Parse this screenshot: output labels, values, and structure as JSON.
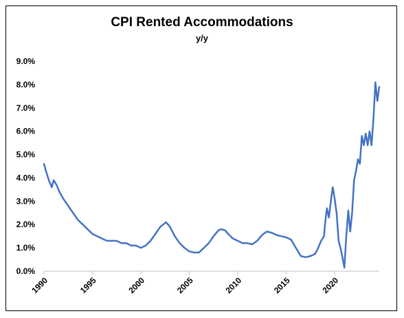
{
  "chart_data": {
    "type": "line",
    "title": "CPI Rented Accommodations",
    "subtitle": "y/y",
    "xlabel": "",
    "ylabel": "",
    "xlim": [
      1990,
      2024.6
    ],
    "ylim": [
      0,
      9
    ],
    "grid": false,
    "legend": "none",
    "x_ticks": [
      "1990",
      "1995",
      "2000",
      "2005",
      "2010",
      "2015",
      "2020"
    ],
    "y_ticks": [
      "0.0%",
      "1.0%",
      "2.0%",
      "3.0%",
      "4.0%",
      "5.0%",
      "6.0%",
      "7.0%",
      "8.0%",
      "9.0%"
    ],
    "series": [
      {
        "color": "#4472C4",
        "x": [
          1990.0,
          1990.2,
          1990.5,
          1990.8,
          1991.0,
          1991.3,
          1991.6,
          1992.0,
          1992.5,
          1993.0,
          1993.5,
          1994.0,
          1994.5,
          1995.0,
          1995.5,
          1996.0,
          1996.5,
          1997.0,
          1997.5,
          1998.0,
          1998.5,
          1999.0,
          1999.5,
          2000.0,
          2000.5,
          2001.0,
          2001.5,
          2002.0,
          2002.3,
          2002.6,
          2003.0,
          2003.5,
          2004.0,
          2004.5,
          2005.0,
          2005.5,
          2006.0,
          2006.5,
          2007.0,
          2007.5,
          2008.0,
          2008.3,
          2008.7,
          2009.0,
          2009.5,
          2010.0,
          2010.5,
          2011.0,
          2011.5,
          2012.0,
          2012.5,
          2013.0,
          2013.5,
          2014.0,
          2014.5,
          2015.0,
          2015.5,
          2016.0,
          2016.5,
          2017.0,
          2017.5,
          2018.0,
          2018.3,
          2018.6,
          2018.9,
          2019.0,
          2019.2,
          2019.4,
          2019.6,
          2019.8,
          2020.0,
          2020.2,
          2020.4,
          2020.6,
          2020.8,
          2021.0,
          2021.2,
          2021.4,
          2021.6,
          2021.8,
          2022.0,
          2022.2,
          2022.4,
          2022.6,
          2022.8,
          2023.0,
          2023.2,
          2023.4,
          2023.6,
          2023.8,
          2024.0,
          2024.2,
          2024.4,
          2024.6
        ],
        "values": [
          4.6,
          4.3,
          3.9,
          3.6,
          3.9,
          3.7,
          3.4,
          3.1,
          2.8,
          2.5,
          2.2,
          2.0,
          1.8,
          1.6,
          1.5,
          1.4,
          1.3,
          1.3,
          1.3,
          1.2,
          1.2,
          1.1,
          1.1,
          1.0,
          1.1,
          1.3,
          1.6,
          1.9,
          2.0,
          2.1,
          1.9,
          1.5,
          1.2,
          1.0,
          0.85,
          0.8,
          0.8,
          1.0,
          1.2,
          1.5,
          1.75,
          1.8,
          1.75,
          1.6,
          1.4,
          1.3,
          1.2,
          1.2,
          1.15,
          1.3,
          1.55,
          1.7,
          1.65,
          1.55,
          1.5,
          1.45,
          1.35,
          1.0,
          0.65,
          0.6,
          0.65,
          0.75,
          1.0,
          1.3,
          1.5,
          2.0,
          2.7,
          2.3,
          3.0,
          3.6,
          3.1,
          2.5,
          1.3,
          1.0,
          0.6,
          0.15,
          1.5,
          2.6,
          1.7,
          2.5,
          3.9,
          4.3,
          4.8,
          4.6,
          5.8,
          5.4,
          5.9,
          5.4,
          6.0,
          5.4,
          6.5,
          8.1,
          7.3,
          7.9
        ]
      }
    ]
  }
}
